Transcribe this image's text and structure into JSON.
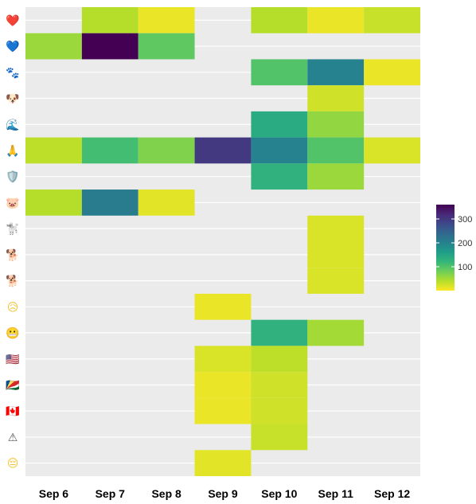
{
  "chart_data": {
    "type": "heatmap",
    "title": "",
    "xlabel": "",
    "ylabel": "",
    "x_categories": [
      "Sep 6",
      "Sep 7",
      "Sep 8",
      "Sep 9",
      "Sep 10",
      "Sep 11",
      "Sep 12"
    ],
    "y_categories": [
      {
        "emoji": "❤️",
        "icon": "red-heart-icon",
        "color": "#e0242c"
      },
      {
        "emoji": "💙",
        "icon": "blue-heart-icon",
        "color": "#3d7fe0"
      },
      {
        "emoji": "🐾",
        "icon": "paw-prints-icon",
        "color": "#444444"
      },
      {
        "emoji": "🐶",
        "icon": "dog-face-icon",
        "color": "#c8864a"
      },
      {
        "emoji": "🌊",
        "icon": "water-wave-icon",
        "color": "#2a7ec8"
      },
      {
        "emoji": "🙏",
        "icon": "folded-hands-icon",
        "color": "#f2b33a"
      },
      {
        "emoji": "🛡️",
        "icon": "shield-icon",
        "color": "#9ab4cc"
      },
      {
        "emoji": "🐷",
        "icon": "pig-face-icon",
        "color": "#f29aa8"
      },
      {
        "emoji": "🐩",
        "icon": "poodle-icon",
        "color": "#aaaaaa"
      },
      {
        "emoji": "🐕",
        "icon": "dog-icon",
        "color": "#c8864a"
      },
      {
        "emoji": "🐕",
        "icon": "dog-brown-icon",
        "color": "#9a5a2a"
      },
      {
        "emoji": "😥",
        "icon": "sad-relieved-face-icon",
        "color": "#f2c230"
      },
      {
        "emoji": "😬",
        "icon": "grimacing-face-icon",
        "color": "#f2c230"
      },
      {
        "emoji": "🇺🇸",
        "icon": "us-flag-icon",
        "color": "#3c5aa8"
      },
      {
        "emoji": "🇸🇨",
        "icon": "seychelles-flag-icon",
        "color": "#1e7a3a"
      },
      {
        "emoji": "🇨🇦",
        "icon": "canada-flag-icon",
        "color": "#d8202a"
      },
      {
        "emoji": "⚠",
        "icon": "warning-icon",
        "color": "#555555"
      },
      {
        "emoji": "😔",
        "icon": "pensive-face-icon",
        "color": "#f2c230"
      }
    ],
    "cells": [
      {
        "x": 1,
        "y": 0,
        "value": 40
      },
      {
        "x": 2,
        "y": 0,
        "value": 10
      },
      {
        "x": 4,
        "y": 0,
        "value": 40
      },
      {
        "x": 5,
        "y": 0,
        "value": 10
      },
      {
        "x": 6,
        "y": 0,
        "value": 30
      },
      {
        "x": 0,
        "y": 1,
        "value": 55
      },
      {
        "x": 1,
        "y": 1,
        "value": 360
      },
      {
        "x": 2,
        "y": 1,
        "value": 90
      },
      {
        "x": 4,
        "y": 2,
        "value": 100
      },
      {
        "x": 5,
        "y": 2,
        "value": 200
      },
      {
        "x": 6,
        "y": 2,
        "value": 10
      },
      {
        "x": 5,
        "y": 3,
        "value": 25
      },
      {
        "x": 4,
        "y": 4,
        "value": 140
      },
      {
        "x": 5,
        "y": 4,
        "value": 60
      },
      {
        "x": 0,
        "y": 5,
        "value": 35
      },
      {
        "x": 1,
        "y": 5,
        "value": 110
      },
      {
        "x": 2,
        "y": 5,
        "value": 70
      },
      {
        "x": 3,
        "y": 5,
        "value": 300
      },
      {
        "x": 4,
        "y": 5,
        "value": 200
      },
      {
        "x": 5,
        "y": 5,
        "value": 100
      },
      {
        "x": 6,
        "y": 5,
        "value": 20
      },
      {
        "x": 4,
        "y": 6,
        "value": 130
      },
      {
        "x": 5,
        "y": 6,
        "value": 55
      },
      {
        "x": 0,
        "y": 7,
        "value": 40
      },
      {
        "x": 1,
        "y": 7,
        "value": 210
      },
      {
        "x": 2,
        "y": 7,
        "value": 15
      },
      {
        "x": 5,
        "y": 8,
        "value": 20
      },
      {
        "x": 5,
        "y": 9,
        "value": 20
      },
      {
        "x": 5,
        "y": 10,
        "value": 20
      },
      {
        "x": 3,
        "y": 11,
        "value": 10
      },
      {
        "x": 4,
        "y": 12,
        "value": 130
      },
      {
        "x": 5,
        "y": 12,
        "value": 50
      },
      {
        "x": 3,
        "y": 13,
        "value": 20
      },
      {
        "x": 4,
        "y": 13,
        "value": 35
      },
      {
        "x": 3,
        "y": 14,
        "value": 10
      },
      {
        "x": 4,
        "y": 14,
        "value": 25
      },
      {
        "x": 3,
        "y": 15,
        "value": 10
      },
      {
        "x": 4,
        "y": 15,
        "value": 25
      },
      {
        "x": 4,
        "y": 16,
        "value": 30
      },
      {
        "x": 3,
        "y": 17,
        "value": 15
      }
    ],
    "color_scale": {
      "name": "viridis",
      "reversed": true,
      "min": 0,
      "max": 360,
      "ticks": [
        100,
        200,
        300
      ],
      "stops": [
        "#fde725",
        "#b5de2b",
        "#6ece58",
        "#35b779",
        "#1f9e89",
        "#26828e",
        "#31688e",
        "#3e4989",
        "#482878",
        "#440154"
      ]
    },
    "legend": {
      "position": "right",
      "title": ""
    },
    "background": "#ebebeb",
    "grid": true
  }
}
